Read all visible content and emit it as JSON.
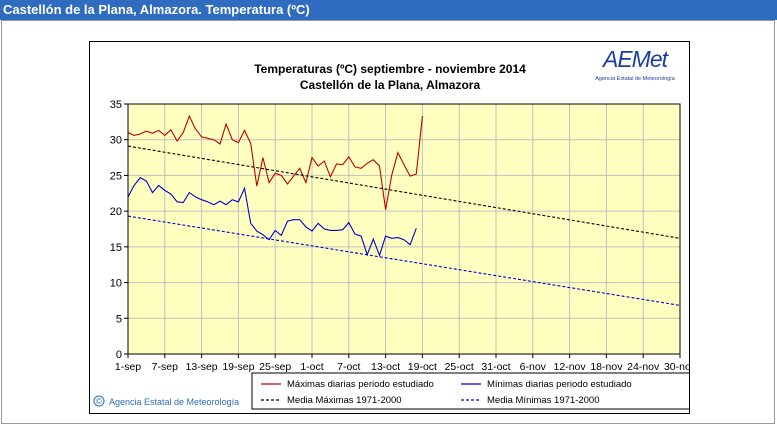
{
  "window": {
    "title": "Castellón de la Plana, Almazora. Temperatura (ºC)"
  },
  "logo": {
    "text": "AEMet",
    "subtitle": "Agencia Estatal de Meteorología",
    "color": "#1a3f9a"
  },
  "footer": {
    "copyright_symbol": "©",
    "text": "Agencia Estatal de Meteorología"
  },
  "colors": {
    "plot_bg": "#ffffc0",
    "max": "#c00000",
    "min": "#0000cc",
    "title_bar": "#2f6cbf"
  },
  "chart_data": {
    "type": "line",
    "title": "Temperaturas (ºC) septiembre - noviembre 2014",
    "subtitle": "Castellón de la Plana, Almazora",
    "ylim": [
      0,
      35
    ],
    "xlim": [
      0,
      90
    ],
    "yticks": [
      0,
      5,
      10,
      15,
      20,
      25,
      30,
      35
    ],
    "xtick_labels": [
      "1-sep",
      "7-sep",
      "13-sep",
      "19-sep",
      "25-sep",
      "1-oct",
      "7-oct",
      "13-oct",
      "19-oct",
      "25-oct",
      "31-oct",
      "6-nov",
      "12-nov",
      "18-nov",
      "24-nov",
      "30-nov"
    ],
    "xtick_days": [
      0,
      6,
      12,
      18,
      24,
      30,
      36,
      42,
      48,
      54,
      60,
      66,
      72,
      78,
      84,
      90
    ],
    "grid": true,
    "legend_position": "bottom",
    "series": [
      {
        "name": "Máximas diarias periodo estudiado",
        "style": "solid",
        "color": "#c00000",
        "x": [
          0,
          1,
          2,
          3,
          4,
          5,
          6,
          7,
          8,
          9,
          10,
          11,
          12,
          13,
          14,
          15,
          16,
          17,
          18,
          19,
          20,
          21,
          22,
          23,
          24,
          25,
          26,
          27,
          28,
          29,
          30,
          31,
          32,
          33,
          34,
          35,
          36,
          37,
          38,
          39,
          40,
          41,
          42,
          43,
          44,
          45,
          46,
          47,
          48,
          49
        ],
        "y": [
          31.0,
          30.6,
          30.8,
          31.2,
          30.9,
          31.3,
          30.6,
          31.4,
          29.8,
          31.0,
          33.3,
          31.5,
          30.4,
          30.2,
          30.0,
          29.4,
          32.2,
          30.0,
          29.6,
          31.3,
          29.5,
          23.5,
          27.5,
          24.0,
          25.3,
          25.0,
          23.8,
          24.9,
          26.0,
          24.0,
          27.5,
          26.3,
          27.0,
          24.8,
          26.6,
          26.5,
          27.6,
          26.2,
          26.0,
          26.7,
          27.2,
          26.3,
          20.2,
          25.0,
          28.2,
          26.5,
          24.9,
          25.2,
          33.3,
          null
        ]
      },
      {
        "name": "Mínimas diarias periodo estudiado",
        "style": "solid",
        "color": "#0000cc",
        "x": [
          0,
          1,
          2,
          3,
          4,
          5,
          6,
          7,
          8,
          9,
          10,
          11,
          12,
          13,
          14,
          15,
          16,
          17,
          18,
          19,
          20,
          21,
          22,
          23,
          24,
          25,
          26,
          27,
          28,
          29,
          30,
          31,
          32,
          33,
          34,
          35,
          36,
          37,
          38,
          39,
          40,
          41,
          42,
          43,
          44,
          45,
          46,
          47,
          48
        ],
        "y": [
          22.0,
          23.6,
          24.7,
          24.2,
          22.6,
          23.6,
          22.9,
          22.4,
          21.3,
          21.2,
          22.6,
          22.0,
          21.6,
          21.3,
          20.9,
          21.4,
          20.9,
          21.6,
          21.3,
          23.2,
          18.3,
          17.2,
          16.7,
          16.0,
          17.3,
          16.6,
          18.6,
          18.8,
          18.8,
          17.8,
          17.2,
          18.3,
          17.5,
          17.3,
          17.3,
          17.4,
          18.4,
          16.8,
          16.5,
          13.9,
          16.1,
          13.8,
          16.5,
          16.2,
          16.3,
          16.0,
          15.3,
          17.6,
          null
        ]
      },
      {
        "name": "Media Máximas 1971-2000",
        "style": "dashed",
        "color": "#000000",
        "x": [
          0,
          90
        ],
        "y": [
          29.1,
          16.2
        ]
      },
      {
        "name": "Media Mínimas 1971-2000",
        "style": "dashed",
        "color": "#0000cc",
        "x": [
          0,
          90
        ],
        "y": [
          19.3,
          6.8
        ]
      }
    ]
  }
}
